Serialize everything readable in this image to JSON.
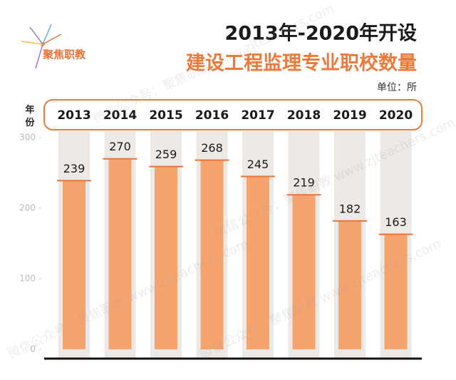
{
  "chart_data": {
    "type": "bar",
    "title": "2013年-2020年开设",
    "subtitle": "建设工程监理专业职校数量",
    "unit_label": "单位：所",
    "y_axis_label": "年份",
    "logo": "聚焦职教",
    "watermark": "微信公众号：聚焦职教 www.zjteachers.com",
    "categories": [
      "2013",
      "2014",
      "2015",
      "2016",
      "2017",
      "2018",
      "2019",
      "2020"
    ],
    "values": [
      239,
      270,
      259,
      268,
      245,
      219,
      182,
      163
    ],
    "color": "#f6a46e",
    "ylim": [
      0,
      300
    ],
    "yticks": [
      0,
      100,
      200,
      300
    ]
  }
}
